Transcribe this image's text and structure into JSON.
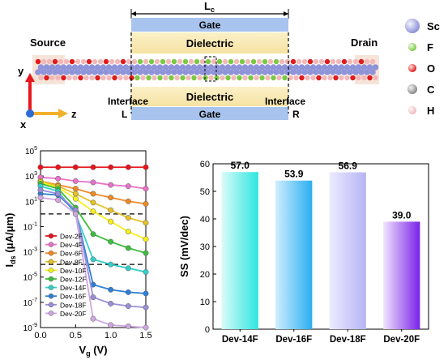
{
  "device": {
    "lc_label": "L",
    "lc_sub": "c",
    "source": "Source",
    "drain": "Drain",
    "gate_top": "Gate",
    "gate_bottom": "Gate",
    "dielectric_top": "Dielectric",
    "dielectric_bottom": "Dielectric",
    "interface_left": "Interface",
    "interface_right": "Interface",
    "mark_left": "L",
    "mark_right": "R",
    "axis_y": "y",
    "axis_z": "z",
    "axis_x": "x"
  },
  "legend_atoms": [
    {
      "symbol": "Sc",
      "color": "#8f93d8"
    },
    {
      "symbol": "F",
      "color": "#7ac943"
    },
    {
      "symbol": "O",
      "color": "#e01b1b"
    },
    {
      "symbol": "C",
      "color": "#8a8a8a"
    },
    {
      "symbol": "H",
      "color": "#f2b8b8"
    }
  ],
  "chart_data": [
    {
      "type": "line",
      "title": "",
      "xlabel": "V",
      "xlabel_sub": "g",
      "xlabel_unit": " (V)",
      "ylabel": "I",
      "ylabel_sub": "ds",
      "ylabel_unit": " (μA/μm)",
      "y_scale": "log",
      "xlim": [
        0,
        1.5
      ],
      "ylim_exp": [
        -9,
        5
      ],
      "x_ticks": [
        "0.0",
        "0.5",
        "1.0",
        "1.5"
      ],
      "y_ticks": [
        "10",
        "10",
        "10",
        "10",
        "10",
        "10",
        "10",
        "10"
      ],
      "y_ticks_exp": [
        "5",
        "3",
        "1",
        "-1",
        "-3",
        "-5",
        "-7",
        "-9"
      ],
      "reference_lines_log10": [
        0,
        -4
      ],
      "x": [
        0,
        0.25,
        0.5,
        0.75,
        1.0,
        1.25,
        1.5
      ],
      "series": [
        {
          "name": "Dev-2F",
          "color": "#e8141c",
          "log10_values": [
            3.7,
            3.7,
            3.7,
            3.7,
            3.7,
            3.7,
            3.7
          ]
        },
        {
          "name": "Dev-4F",
          "color": "#e872c8",
          "log10_values": [
            2.9,
            2.8,
            2.6,
            2.5,
            2.3,
            2.2,
            2.0
          ]
        },
        {
          "name": "Dev-6F",
          "color": "#f08a24",
          "log10_values": [
            2.6,
            2.3,
            2.0,
            1.6,
            1.3,
            1.0,
            0.8
          ]
        },
        {
          "name": "Dev-8F",
          "color": "#e6c229",
          "log10_values": [
            2.6,
            2.2,
            1.6,
            0.9,
            0.3,
            -0.3,
            -0.7
          ]
        },
        {
          "name": "Dev-10F",
          "color": "#f7f01a",
          "log10_values": [
            2.5,
            2.1,
            1.2,
            0.2,
            -0.6,
            -1.4,
            -2.0
          ]
        },
        {
          "name": "Dev-12F",
          "color": "#3dbd3d",
          "log10_values": [
            2.4,
            2.0,
            0.5,
            -1.6,
            -2.2,
            -2.7,
            -3.1
          ]
        },
        {
          "name": "Dev-14F",
          "color": "#33cfc9",
          "log10_values": [
            2.2,
            1.8,
            0.0,
            -3.6,
            -4.0,
            -4.3,
            -4.6
          ]
        },
        {
          "name": "Dev-16F",
          "color": "#2e7fd6",
          "log10_values": [
            1.6,
            1.5,
            0.2,
            -5.6,
            -6.0,
            -6.2,
            -6.3
          ]
        },
        {
          "name": "Dev-18F",
          "color": "#9b8fd9",
          "log10_values": [
            1.9,
            1.6,
            0.3,
            -6.6,
            -7.1,
            -7.3,
            -7.4
          ]
        },
        {
          "name": "Dev-20F",
          "color": "#cfa8e0",
          "log10_values": [
            1.3,
            1.1,
            0.0,
            -8.3,
            -8.8,
            -8.9,
            -9.0
          ]
        }
      ]
    },
    {
      "type": "bar",
      "title": "",
      "xlabel": "",
      "ylabel": "SS (mV/dec)",
      "ylim": [
        0,
        60
      ],
      "y_ticks": [
        0,
        10,
        20,
        30,
        40,
        50,
        60
      ],
      "categories": [
        "Dev-14F",
        "Dev-16F",
        "Dev-18F",
        "Dev-20F"
      ],
      "values": [
        57.0,
        53.9,
        56.9,
        39.0
      ],
      "value_labels": [
        "57.0",
        "53.9",
        "56.9",
        "39.0"
      ],
      "colors": [
        [
          "#d8fbf9",
          "#2ee6e0"
        ],
        [
          "#cfeeff",
          "#2aaef0"
        ],
        [
          "#ecebff",
          "#b7b4f5"
        ],
        [
          "#f0e4ff",
          "#7a22e8"
        ]
      ]
    }
  ]
}
